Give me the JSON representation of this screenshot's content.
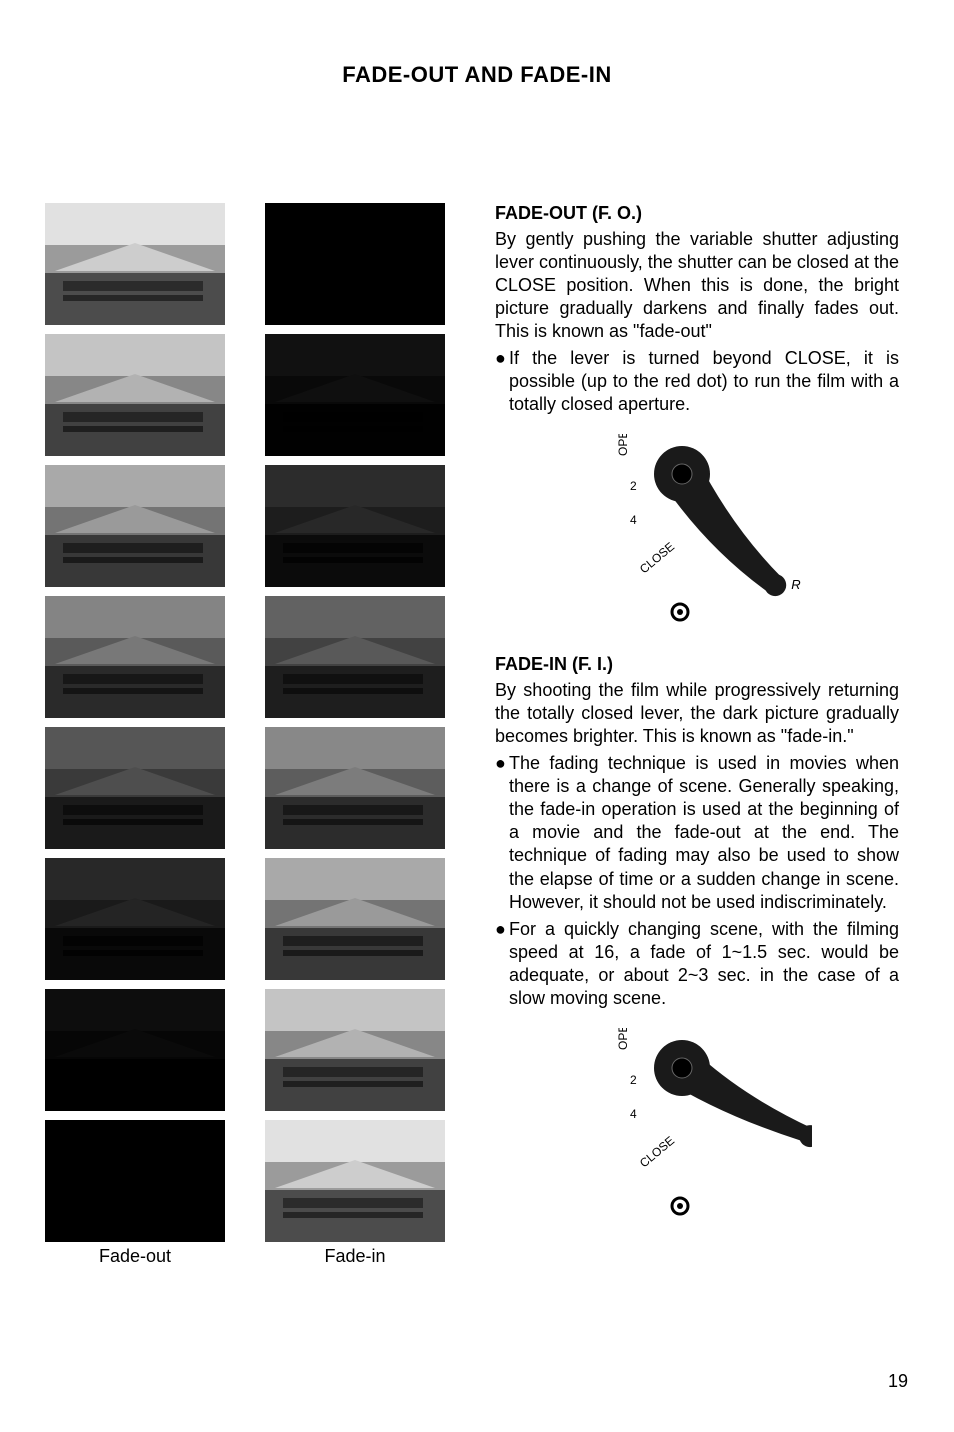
{
  "page": {
    "title": "FADE-OUT AND FADE-IN",
    "page_number": "19"
  },
  "strips": {
    "left_label": "Fade-out",
    "right_label": "Fade-in",
    "fade_out_frames": [
      {
        "darkness": 0.0
      },
      {
        "darkness": 0.12
      },
      {
        "darkness": 0.24
      },
      {
        "darkness": 0.4
      },
      {
        "darkness": 0.6
      },
      {
        "darkness": 0.8
      },
      {
        "darkness": 0.92
      },
      {
        "darkness": 1.0
      }
    ],
    "fade_in_frames": [
      {
        "darkness": 1.0
      },
      {
        "darkness": 0.9
      },
      {
        "darkness": 0.78
      },
      {
        "darkness": 0.55
      },
      {
        "darkness": 0.38
      },
      {
        "darkness": 0.24
      },
      {
        "darkness": 0.12
      },
      {
        "darkness": 0.0
      }
    ]
  },
  "sections": {
    "fo_heading": "FADE-OUT (F. O.)",
    "fo_body": "By gently pushing the variable shutter adjusting lever continuously, the shutter can be closed at the CLOSE position. When this is done, the bright picture gradually darkens and finally fades out. This is known as \"fade-out\"",
    "fo_bullet": "If the lever is turned beyond CLOSE, it is possible (up to the red dot) to run the film with a totally closed aperture.",
    "fi_heading": "FADE-IN (F. I.)",
    "fi_body": "By shooting the film while progressively returning the totally closed lever, the dark picture gradually becomes brighter. This is known as \"fade-in.\"",
    "fi_bullet1": "The fading technique is used in movies when there is a change of scene. Generally speaking, the fade-in operation is used at the beginning of a movie and the fade-out at the end. The technique of fading may also be used to show the elapse of time or a sudden change in scene. However, it should not be used indiscriminately.",
    "fi_bullet2": "For a quickly changing scene, with the filming speed at 16, a fade of 1~1.5 sec. would be adequate, or about 2~3 sec. in the case of a slow moving scene."
  },
  "diagrams": {
    "scale_labels": [
      "OPEN",
      "2",
      "4",
      "CLOSE"
    ],
    "r_label": "R",
    "colors": {
      "lever_fill": "#1a1a1a",
      "knob_fill": "#1a1a1a",
      "text": "#000000",
      "dot_stroke": "#000000",
      "background": "#ffffff"
    },
    "top": {
      "lever_angle_deg": 40
    },
    "bottom": {
      "lever_angle_deg": 62
    }
  }
}
